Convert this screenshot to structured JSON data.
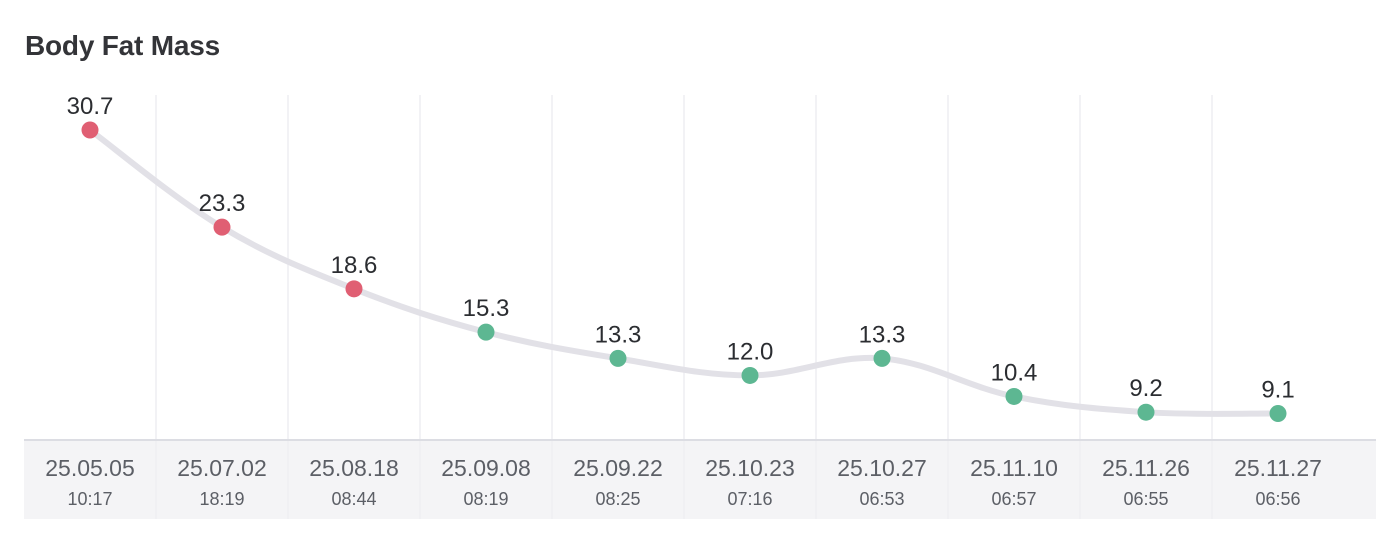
{
  "chart_data": {
    "type": "line",
    "title": "Body Fat Mass",
    "xlabel": "",
    "ylabel": "",
    "x": [
      {
        "date": "25.05.05",
        "time": "10:17"
      },
      {
        "date": "25.07.02",
        "time": "18:19"
      },
      {
        "date": "25.08.18",
        "time": "08:44"
      },
      {
        "date": "25.09.08",
        "time": "08:19"
      },
      {
        "date": "25.09.22",
        "time": "08:25"
      },
      {
        "date": "25.10.23",
        "time": "07:16"
      },
      {
        "date": "25.10.27",
        "time": "06:53"
      },
      {
        "date": "25.11.10",
        "time": "06:57"
      },
      {
        "date": "25.11.26",
        "time": "06:55"
      },
      {
        "date": "25.11.27",
        "time": "06:56"
      }
    ],
    "series": [
      {
        "values": [
          30.7,
          23.3,
          18.6,
          15.3,
          13.3,
          12.0,
          13.3,
          10.4,
          9.2,
          9.1
        ],
        "labels": [
          "30.7",
          "23.3",
          "18.6",
          "15.3",
          "13.3",
          "12.0",
          "13.3",
          "10.4",
          "9.2",
          "9.1"
        ],
        "status": [
          "high",
          "high",
          "high",
          "normal",
          "normal",
          "normal",
          "normal",
          "normal",
          "normal",
          "normal"
        ]
      }
    ],
    "grid": true,
    "colors": {
      "high": "#e05f73",
      "normal": "#5db792",
      "line": "#e2e1e7",
      "grid": "#eeeef2",
      "axis_band": "#f4f4f6",
      "axis_border": "#dcdde3"
    }
  }
}
